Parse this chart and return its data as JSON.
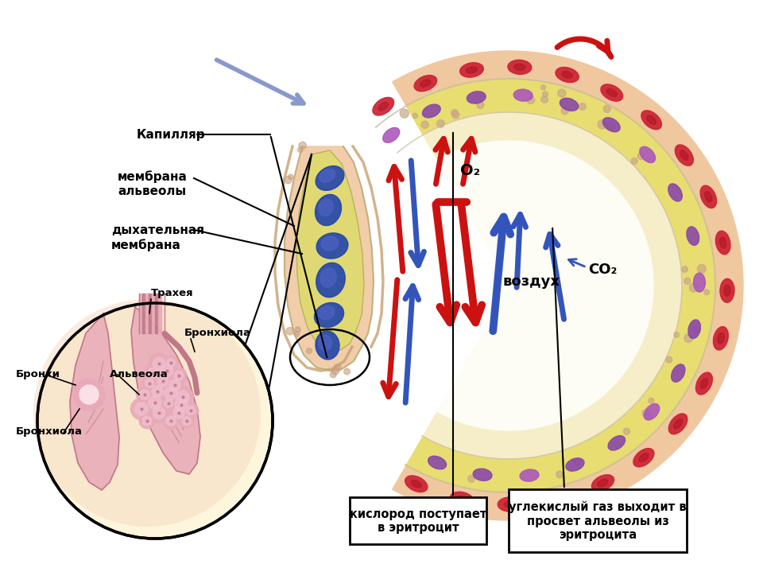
{
  "bg_color": "#ffffff",
  "labels": {
    "kapillyar": "Капилляр",
    "membrana_alveoly": "мембрана\nальвеолы",
    "dykhatelnaya_membrana": "дыхательная\nмембрана",
    "vozdukh": "воздух",
    "o2": "O₂",
    "co2": "CO₂",
    "kislorod": "кислород поступает\nв эритроцит",
    "uglekisly": "углекислый газ выходит в\nпросвет альвеолы из\nэритроцита",
    "bronkhi": "Бронхи",
    "trakhea": "Трахея",
    "bronkhiola_up": "Бронхиола",
    "alveola": "Альвеола",
    "bronkhiola_down": "Бронхиола"
  },
  "red_color": "#cc1111",
  "blue_color": "#3355bb",
  "light_blue_arrow": "#8899cc",
  "alveolus_outer": "#f0c8a0",
  "alveolus_yellow": "#e8dd70",
  "alveolus_light": "#f5eec8",
  "alveolus_white": "#fdfdf5",
  "erythrocyte_red": "#cc2233",
  "erythrocyte_purple": "#8844aa",
  "capillary_yellow": "#e0da70",
  "capillary_skin": "#f0c898",
  "cell_blue": "#2244aa",
  "cell_blue2": "#5566cc",
  "lung_pink": "#e8aab8",
  "lung_dark_pink": "#c07888",
  "lung_skin": "#f5d8c0",
  "inset_bg": "#fdf5dc"
}
